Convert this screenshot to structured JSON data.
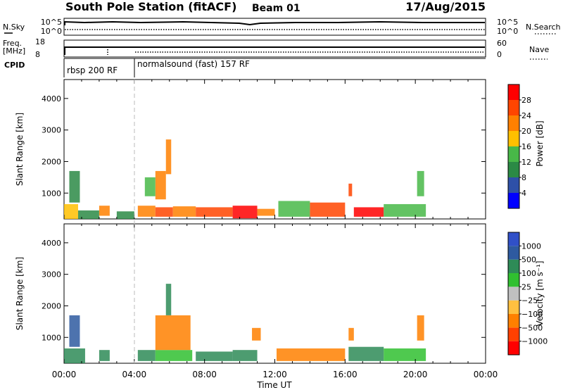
{
  "header": {
    "station": "South Pole Station (fitACF)",
    "beam": "Beam 01",
    "date": "17/Aug/2015"
  },
  "noise_panel": {
    "left_label": "N.Sky",
    "right_label": "N.Search",
    "left_ticks": [
      "10^5",
      "10^0"
    ],
    "right_ticks": [
      "10^5",
      "10^0"
    ]
  },
  "freq_panel": {
    "left_label_line1": "Freq.",
    "left_label_line2": "[MHz]",
    "left_ticks": [
      "18",
      "8"
    ],
    "right_ticks": [
      "60",
      "0"
    ],
    "right_label": "Nave"
  },
  "cpid_panel": {
    "label": "CPID",
    "segments": [
      {
        "label": "rbsp 200 RF",
        "start_hour": 0
      },
      {
        "label": "normalsound (fast) 157 RF",
        "start_hour": 4
      }
    ]
  },
  "x_axis": {
    "ticks": [
      "00:00",
      "04:00",
      "08:00",
      "12:00",
      "16:00",
      "20:00",
      "00:00"
    ],
    "label": "Time UT"
  },
  "colors": {
    "power": [
      "#0000ff",
      "#2e50a8",
      "#2b8a45",
      "#48b848",
      "#ffc000",
      "#ff8000",
      "#ff4500",
      "#ff0000"
    ],
    "velocity": [
      "#ff0000",
      "#ff4000",
      "#ff8000",
      "#ffc040",
      "#c0c0c0",
      "#30c030",
      "#2e8b57",
      "#2e5aa0",
      "#3050c8"
    ]
  },
  "chart_data": [
    {
      "type": "heatmap",
      "name": "power",
      "ylabel": "Slant Range [km]",
      "xlabel": "",
      "ylim": [
        180,
        4600
      ],
      "xlim_hours": [
        0,
        24
      ],
      "yticks": [
        "1000",
        "2000",
        "3000",
        "4000"
      ],
      "colorbar": {
        "label": "Power [dB]",
        "ticks": [
          "4",
          "8",
          "12",
          "16",
          "20",
          "24",
          "28"
        ],
        "range": [
          0,
          30
        ]
      },
      "patches": [
        {
          "t0": 0.0,
          "t1": 0.8,
          "r0": 180,
          "r1": 650,
          "v": 18
        },
        {
          "t0": 0.8,
          "t1": 2.0,
          "r0": 180,
          "r1": 450,
          "v": 8
        },
        {
          "t0": 2.0,
          "t1": 2.6,
          "r0": 280,
          "r1": 600,
          "v": 21
        },
        {
          "t0": 3.0,
          "t1": 4.0,
          "r0": 180,
          "r1": 420,
          "v": 10
        },
        {
          "t0": 4.2,
          "t1": 5.2,
          "r0": 250,
          "r1": 600,
          "v": 21
        },
        {
          "t0": 5.2,
          "t1": 6.2,
          "r0": 250,
          "r1": 550,
          "v": 26
        },
        {
          "t0": 6.2,
          "t1": 7.5,
          "r0": 250,
          "r1": 580,
          "v": 22
        },
        {
          "t0": 7.5,
          "t1": 9.6,
          "r0": 250,
          "r1": 550,
          "v": 24
        },
        {
          "t0": 9.6,
          "t1": 11.0,
          "r0": 200,
          "r1": 600,
          "v": 29
        },
        {
          "t0": 11.0,
          "t1": 12.0,
          "r0": 280,
          "r1": 500,
          "v": 19
        },
        {
          "t0": 12.2,
          "t1": 14.0,
          "r0": 250,
          "r1": 750,
          "v": 13
        },
        {
          "t0": 14.0,
          "t1": 16.0,
          "r0": 250,
          "r1": 700,
          "v": 25
        },
        {
          "t0": 16.5,
          "t1": 18.2,
          "r0": 250,
          "r1": 550,
          "v": 28
        },
        {
          "t0": 18.2,
          "t1": 20.6,
          "r0": 250,
          "r1": 650,
          "v": 13
        },
        {
          "t0": 0.3,
          "t1": 0.9,
          "r0": 700,
          "r1": 1700,
          "v": 10
        },
        {
          "t0": 5.2,
          "t1": 5.8,
          "r0": 800,
          "r1": 1700,
          "v": 22
        },
        {
          "t0": 4.6,
          "t1": 5.2,
          "r0": 900,
          "r1": 1500,
          "v": 13
        },
        {
          "t0": 5.8,
          "t1": 6.1,
          "r0": 1600,
          "r1": 2700,
          "v": 20
        },
        {
          "t0": 20.1,
          "t1": 20.5,
          "r0": 900,
          "r1": 1700,
          "v": 13
        },
        {
          "t0": 16.2,
          "t1": 16.4,
          "r0": 900,
          "r1": 1300,
          "v": 25
        }
      ]
    },
    {
      "type": "heatmap",
      "name": "velocity",
      "ylabel": "Slant Range [km]",
      "xlabel": "Time UT",
      "ylim": [
        180,
        4600
      ],
      "xlim_hours": [
        0,
        24
      ],
      "yticks": [
        "1000",
        "2000",
        "3000",
        "4000"
      ],
      "colorbar": {
        "label": "Velocity [m s⁻¹]",
        "ticks": [
          "1000",
          "500",
          "100",
          "25",
          "−25",
          "−100",
          "−500",
          "−1000"
        ]
      },
      "patches": [
        {
          "t0": 0.0,
          "t1": 1.2,
          "r0": 180,
          "r1": 650,
          "v": 6
        },
        {
          "t0": 2.0,
          "t1": 2.6,
          "r0": 250,
          "r1": 600,
          "v": 6
        },
        {
          "t0": 4.2,
          "t1": 5.2,
          "r0": 250,
          "r1": 600,
          "v": 6
        },
        {
          "t0": 5.2,
          "t1": 7.3,
          "r0": 250,
          "r1": 600,
          "v": 5
        },
        {
          "t0": 5.2,
          "t1": 7.2,
          "r0": 600,
          "r1": 1700,
          "v": 2
        },
        {
          "t0": 7.5,
          "t1": 9.6,
          "r0": 250,
          "r1": 550,
          "v": 6
        },
        {
          "t0": 9.6,
          "t1": 11.0,
          "r0": 250,
          "r1": 600,
          "v": 6
        },
        {
          "t0": 12.1,
          "t1": 16.0,
          "r0": 250,
          "r1": 650,
          "v": 2
        },
        {
          "t0": 16.2,
          "t1": 18.2,
          "r0": 250,
          "r1": 700,
          "v": 6
        },
        {
          "t0": 18.2,
          "t1": 20.6,
          "r0": 250,
          "r1": 650,
          "v": 5
        },
        {
          "t0": 0.3,
          "t1": 0.9,
          "r0": 700,
          "r1": 1700,
          "v": 7
        },
        {
          "t0": 5.8,
          "t1": 6.1,
          "r0": 1700,
          "r1": 2700,
          "v": 6
        },
        {
          "t0": 20.1,
          "t1": 20.5,
          "r0": 900,
          "r1": 1700,
          "v": 2
        },
        {
          "t0": 16.2,
          "t1": 16.5,
          "r0": 900,
          "r1": 1300,
          "v": 2
        },
        {
          "t0": 10.7,
          "t1": 11.2,
          "r0": 900,
          "r1": 1300,
          "v": 2
        }
      ]
    }
  ]
}
